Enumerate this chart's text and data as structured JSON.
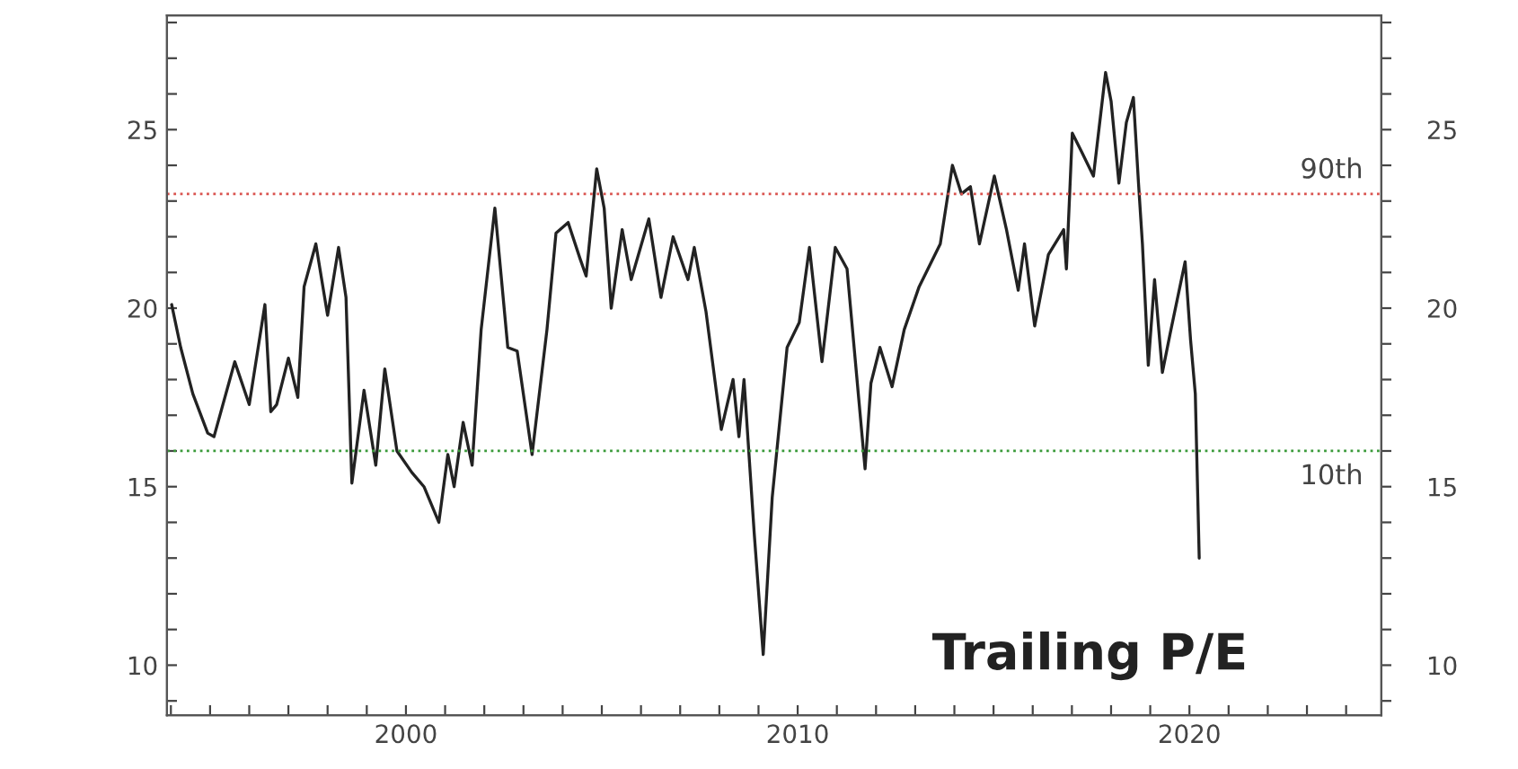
{
  "chart_data": {
    "type": "line",
    "annotations": [
      "Trailing P/E"
    ],
    "x": [
      1994.02,
      1994.25,
      1994.56,
      1994.94,
      1995.1,
      1995.63,
      1996.0,
      1996.4,
      1996.55,
      1996.7,
      1997.0,
      1997.24,
      1997.4,
      1997.7,
      1998.0,
      1998.28,
      1998.47,
      1998.62,
      1998.93,
      1999.23,
      1999.46,
      1999.77,
      2000.15,
      2000.46,
      2000.84,
      2001.07,
      2001.23,
      2001.46,
      2001.69,
      2001.92,
      2002.27,
      2002.6,
      2002.84,
      2003.22,
      2003.6,
      2003.83,
      2004.14,
      2004.44,
      2004.6,
      2004.87,
      2005.06,
      2005.24,
      2005.52,
      2005.75,
      2006.2,
      2006.51,
      2006.82,
      2007.2,
      2007.36,
      2007.66,
      2008.05,
      2008.35,
      2008.5,
      2008.63,
      2008.89,
      2009.12,
      2009.35,
      2009.73,
      2010.04,
      2010.3,
      2010.62,
      2010.96,
      2011.26,
      2011.72,
      2011.87,
      2012.1,
      2012.41,
      2012.72,
      2013.1,
      2013.64,
      2013.95,
      2014.18,
      2014.41,
      2014.64,
      2015.02,
      2015.33,
      2015.63,
      2015.79,
      2016.05,
      2016.4,
      2016.79,
      2016.86,
      2017.01,
      2017.24,
      2017.55,
      2017.86,
      2018.0,
      2018.2,
      2018.39,
      2018.57,
      2018.7,
      2018.8,
      2018.95,
      2019.11,
      2019.31,
      2019.51,
      2019.89,
      2020.03,
      2020.15,
      2020.25
    ],
    "series": [
      {
        "color": "#222222",
        "values": [
          20.1,
          18.9,
          17.6,
          16.5,
          16.4,
          18.5,
          17.3,
          20.1,
          17.1,
          17.3,
          18.6,
          17.5,
          20.6,
          21.8,
          19.8,
          21.7,
          20.3,
          15.1,
          17.7,
          15.6,
          18.3,
          16.0,
          15.4,
          15.0,
          14.0,
          15.9,
          15.0,
          16.8,
          15.6,
          19.4,
          22.8,
          18.9,
          18.8,
          15.9,
          19.4,
          22.1,
          22.4,
          21.4,
          20.9,
          23.9,
          22.8,
          20.0,
          22.2,
          20.8,
          22.5,
          20.3,
          22.0,
          20.8,
          21.7,
          19.9,
          16.6,
          18.0,
          16.4,
          18.0,
          13.7,
          10.3,
          14.7,
          18.9,
          19.6,
          21.7,
          18.5,
          21.7,
          21.1,
          15.5,
          17.9,
          18.9,
          17.8,
          19.4,
          20.6,
          21.8,
          24.0,
          23.2,
          23.4,
          21.8,
          23.7,
          22.2,
          20.5,
          21.8,
          19.5,
          21.5,
          22.2,
          21.1,
          24.9,
          24.4,
          23.7,
          26.6,
          25.8,
          23.5,
          25.2,
          25.9,
          23.5,
          21.8,
          18.4,
          20.8,
          18.2,
          19.3,
          21.3,
          19.1,
          17.6,
          13.0
        ]
      }
    ],
    "xlim": [
      1993.9,
      2024.9
    ],
    "xticks": [
      {
        "value": 1994,
        "label": null
      },
      {
        "value": 1995,
        "label": null
      },
      {
        "value": 1996,
        "label": null
      },
      {
        "value": 1997,
        "label": null
      },
      {
        "value": 1998,
        "label": null
      },
      {
        "value": 1999,
        "label": null
      },
      2000,
      {
        "value": 2001,
        "label": null
      },
      {
        "value": 2002,
        "label": null
      },
      {
        "value": 2003,
        "label": null
      },
      {
        "value": 2004,
        "label": null
      },
      {
        "value": 2005,
        "label": null
      },
      {
        "value": 2006,
        "label": null
      },
      {
        "value": 2007,
        "label": null
      },
      {
        "value": 2008,
        "label": null
      },
      {
        "value": 2009,
        "label": null
      },
      2010,
      {
        "value": 2011,
        "label": null
      },
      {
        "value": 2012,
        "label": null
      },
      {
        "value": 2013,
        "label": null
      },
      {
        "value": 2014,
        "label": null
      },
      {
        "value": 2015,
        "label": null
      },
      {
        "value": 2016,
        "label": null
      },
      {
        "value": 2017,
        "label": null
      },
      {
        "value": 2018,
        "label": null
      },
      {
        "value": 2019,
        "label": null
      },
      2020,
      {
        "value": 2021,
        "label": null
      },
      {
        "value": 2022,
        "label": null
      },
      {
        "value": 2023,
        "label": null
      },
      {
        "value": 2024,
        "label": null
      }
    ],
    "ylim": [
      8.6,
      28.2
    ],
    "yticks": [
      {
        "value": 9,
        "label": null
      },
      10,
      {
        "value": 11,
        "label": null
      },
      {
        "value": 12,
        "label": null
      },
      {
        "value": 13,
        "label": null
      },
      {
        "value": 14,
        "label": null
      },
      15,
      {
        "value": 16,
        "label": null
      },
      {
        "value": 17,
        "label": null
      },
      {
        "value": 18,
        "label": null
      },
      {
        "value": 19,
        "label": null
      },
      20,
      {
        "value": 21,
        "label": null
      },
      {
        "value": 22,
        "label": null
      },
      {
        "value": 23,
        "label": null
      },
      {
        "value": 24,
        "label": null
      },
      25,
      {
        "value": 26,
        "label": null
      },
      {
        "value": 27,
        "label": null
      },
      {
        "value": 28,
        "label": null
      }
    ],
    "y2lim": [
      8.6,
      28.2
    ],
    "y2ticks": [
      {
        "value": 9,
        "label": null
      },
      10,
      {
        "value": 11,
        "label": null
      },
      {
        "value": 12,
        "label": null
      },
      {
        "value": 13,
        "label": null
      },
      {
        "value": 14,
        "label": null
      },
      15,
      {
        "value": 16,
        "label": null
      },
      {
        "value": 17,
        "label": null
      },
      {
        "value": 18,
        "label": null
      },
      {
        "value": 19,
        "label": null
      },
      20,
      {
        "value": 21,
        "label": null
      },
      {
        "value": 22,
        "label": null
      },
      {
        "value": 23,
        "label": null
      },
      {
        "value": 24,
        "label": null
      },
      25,
      {
        "value": 26,
        "label": null
      },
      {
        "value": 27,
        "label": null
      },
      {
        "value": 28,
        "label": null
      }
    ],
    "ref_lines": [
      {
        "axis": "y",
        "value": 23.2,
        "label": "90th",
        "color": "#d9534f",
        "line_style": "dotted"
      },
      {
        "axis": "y",
        "value": 16.0,
        "label": "10th",
        "color": "#3a9a3a",
        "line_style": "dotted"
      }
    ],
    "grid": false,
    "legend": false,
    "marker": "none",
    "line_style": "solid"
  }
}
